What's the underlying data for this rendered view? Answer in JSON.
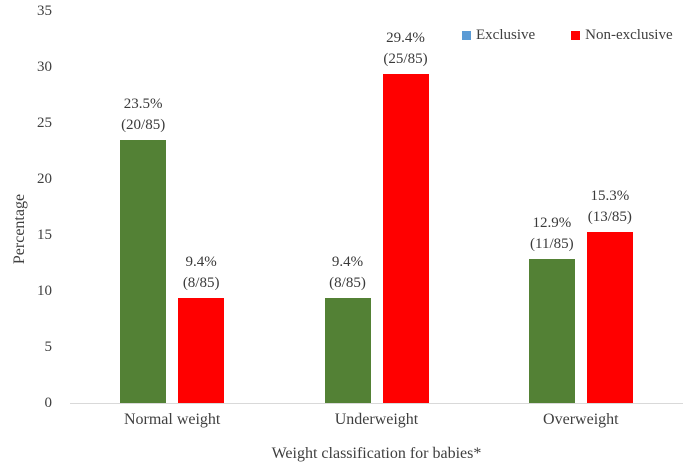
{
  "chart_data": {
    "type": "bar",
    "title": "",
    "xlabel": "Weight classification for babies*",
    "ylabel": "Percentage",
    "ylim": [
      0,
      35
    ],
    "yticks": [
      0,
      5,
      10,
      15,
      20,
      25,
      30,
      35
    ],
    "grid": false,
    "legend_position": "top-right",
    "categories": [
      "Normal weight",
      "Underweight",
      "Overweight"
    ],
    "series": [
      {
        "name": "Exclusive",
        "legend_color": "#5b9bd5",
        "bar_color": "#538135",
        "values": [
          23.5,
          9.4,
          12.9
        ],
        "labels": [
          [
            "23.5%",
            "(20/85)"
          ],
          [
            "9.4%",
            "(8/85)"
          ],
          [
            "12.9%",
            "(11/85)"
          ]
        ]
      },
      {
        "name": "Non-exclusive",
        "legend_color": "#ff0000",
        "bar_color": "#ff0000",
        "values": [
          9.4,
          29.4,
          15.3
        ],
        "labels": [
          [
            "9.4%",
            "(8/85)"
          ],
          [
            "29.4%",
            "(25/85)"
          ],
          [
            "15.3%",
            "(13/85)"
          ]
        ]
      }
    ]
  }
}
